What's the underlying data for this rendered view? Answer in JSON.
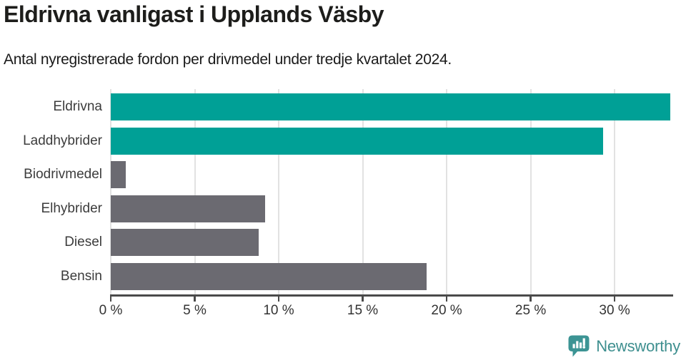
{
  "chart_data": {
    "type": "bar",
    "orientation": "horizontal",
    "title": "Eldrivna vanligast i Upplands Väsby",
    "subtitle": "Antal nyregistrerade fordon per drivmedel under tredje kvartalet 2024.",
    "categories": [
      "Eldrivna",
      "Laddhybrider",
      "Biodrivmedel",
      "Elhybrider",
      "Diesel",
      "Bensin"
    ],
    "values": [
      33.3,
      29.3,
      0.9,
      9.2,
      8.8,
      18.8
    ],
    "unit": "%",
    "xlim": [
      0,
      33.4
    ],
    "x_ticks": [
      0,
      5,
      10,
      15,
      20,
      25,
      30
    ],
    "x_tick_labels": [
      "0 %",
      "5 %",
      "10 %",
      "15 %",
      "20 %",
      "25 %",
      "30 %"
    ],
    "bar_colors": [
      "#00a096",
      "#00a096",
      "#6b6a71",
      "#6b6a71",
      "#6b6a71",
      "#6b6a71"
    ],
    "highlight_color": "#00a096",
    "base_color": "#6b6a71",
    "grid": true,
    "gridline_color": "#e2e2e2",
    "axis_color": "#4a4a4a",
    "legend": "none",
    "ylabel": "",
    "xlabel": ""
  },
  "footer": {
    "brand": "Newsworthy",
    "brand_color": "#3e8f8f",
    "icon_color": "#3c9494"
  }
}
